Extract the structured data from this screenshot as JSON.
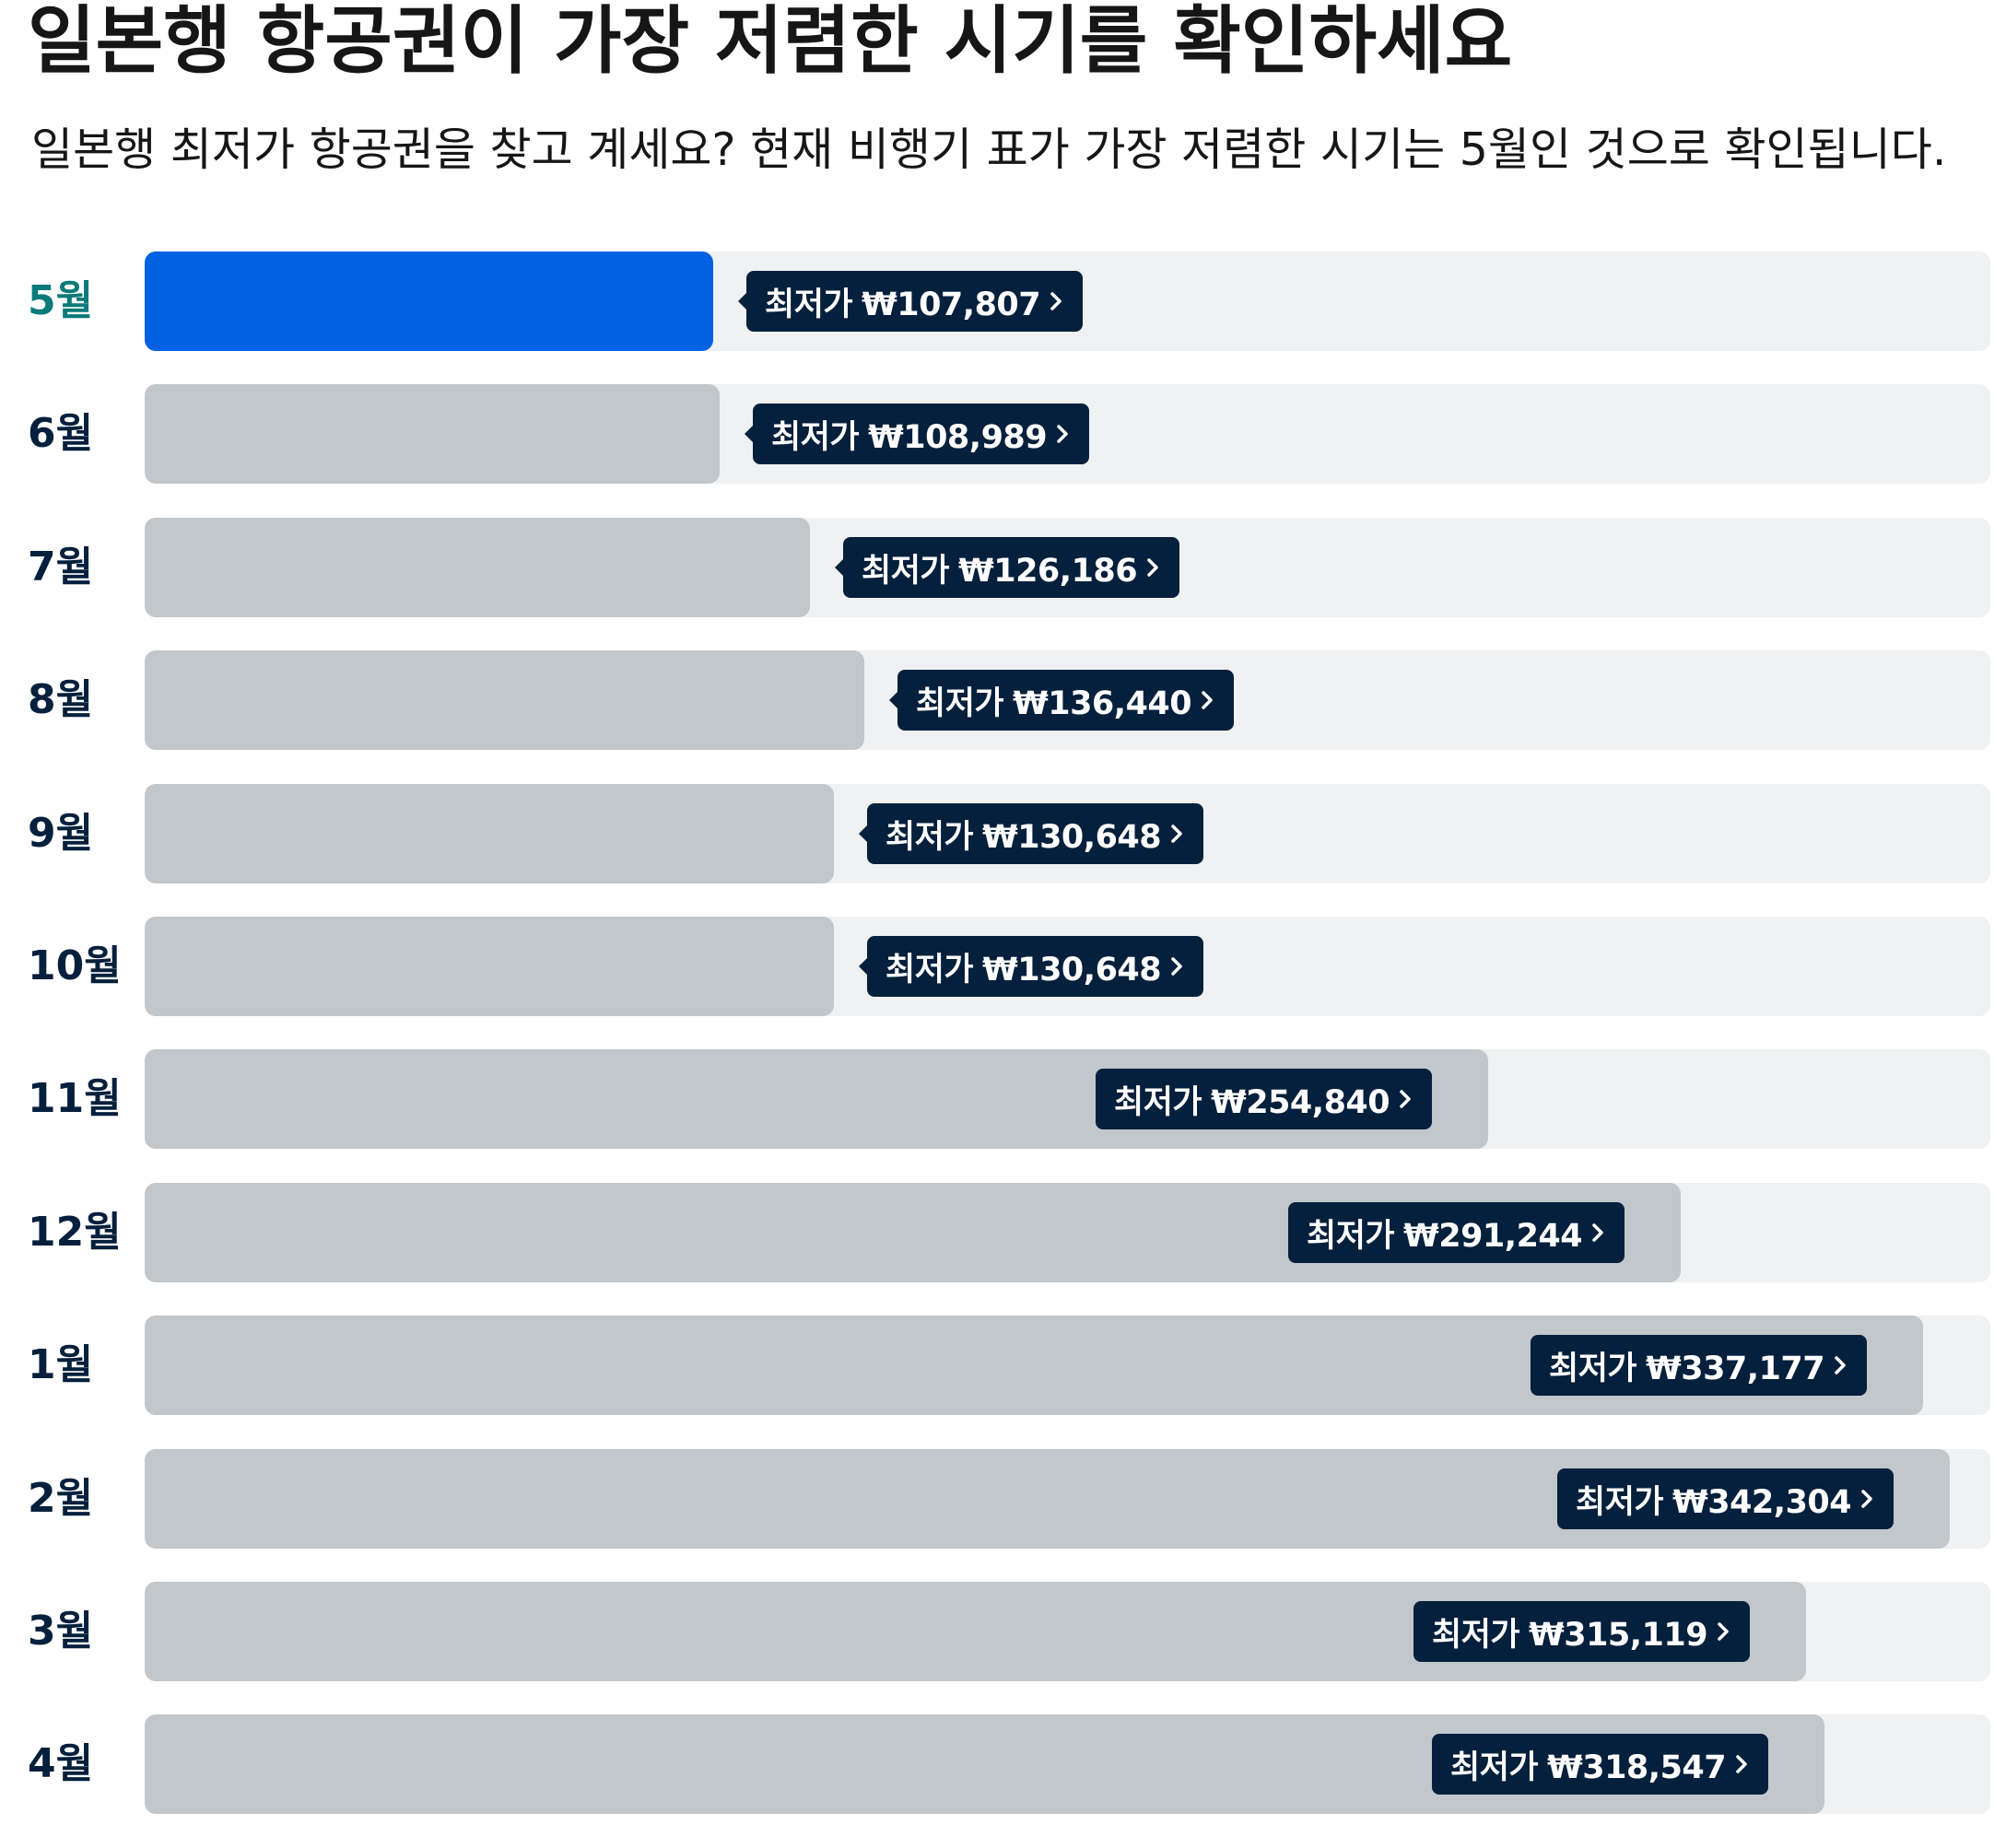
{
  "header": {
    "title": "일본행 항공권이 가장 저렴한 시기를 확인하세요",
    "subtitle": "일본행 최저가 항공권을 찾고 계세요? 현재 비행기 표가 가장 저렴한 시기는 5월인 것으로 확인됩니다."
  },
  "colors": {
    "cheapest_bar": "#0062e3",
    "bar": "#c1c7cb",
    "track": "#eff1f2",
    "tag_background": "#05203c",
    "tag_text": "#ffffff",
    "cheapest_label": "#0a7a7a",
    "label": "#05203c"
  },
  "tag_icon": "chevron-right-icon",
  "price_prefix": "최저가",
  "cheapest_month": "5월",
  "chart_data": {
    "type": "bar",
    "orientation": "horizontal",
    "title": "",
    "xlabel": "",
    "ylabel": "",
    "currency": "₩",
    "xlim": [
      0,
      350000
    ],
    "grid": false,
    "categories": [
      "5월",
      "6월",
      "7월",
      "8월",
      "9월",
      "10월",
      "11월",
      "12월",
      "1월",
      "2월",
      "3월",
      "4월"
    ],
    "values": [
      107807,
      108989,
      126186,
      136440,
      130648,
      130648,
      254840,
      291244,
      337177,
      342304,
      315119,
      318547
    ],
    "value_labels": [
      "₩107,807",
      "₩108,989",
      "₩126,186",
      "₩136,440",
      "₩130,648",
      "₩130,648",
      "₩254,840",
      "₩291,244",
      "₩337,177",
      "₩342,304",
      "₩315,119",
      "₩318,547"
    ]
  }
}
